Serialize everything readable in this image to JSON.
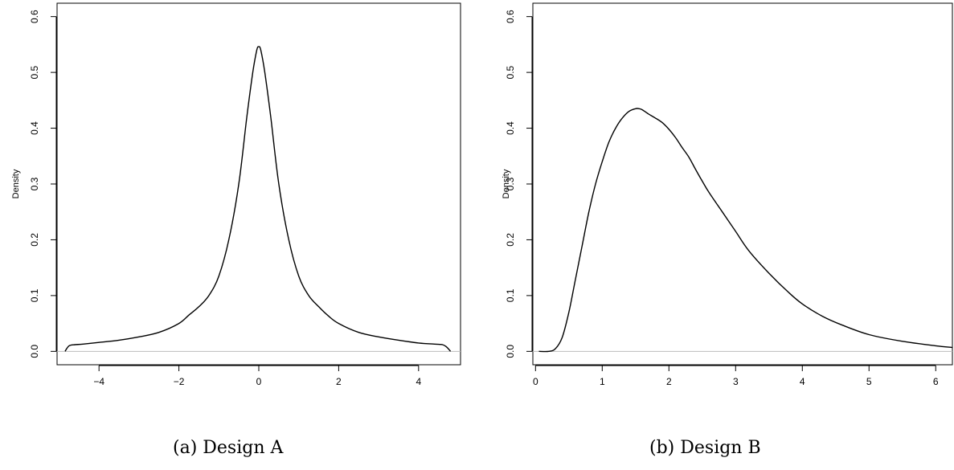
{
  "chart_data": [
    {
      "type": "line",
      "caption": "(a) Design A",
      "xlabel": "",
      "ylabel": "Density",
      "xlim": [
        -5.05,
        5.05
      ],
      "ylim": [
        -0.024,
        0.624
      ],
      "xticks": [
        -4,
        -2,
        0,
        2,
        4
      ],
      "xtick_labels": [
        "−4",
        "−2",
        "0",
        "2",
        "4"
      ],
      "yticks": [
        0.0,
        0.1,
        0.2,
        0.3,
        0.4,
        0.5,
        0.6
      ],
      "ytick_labels": [
        "0.0",
        "0.1",
        "0.2",
        "0.3",
        "0.4",
        "0.5",
        "0.6"
      ],
      "baseline_y": 0,
      "grid": false,
      "series": [
        {
          "x": [
            -4.85,
            -4.75,
            -4.6,
            -4.4,
            -4.0,
            -3.5,
            -3.0,
            -2.5,
            -2.0,
            -1.75,
            -1.5,
            -1.25,
            -1.0,
            -0.75,
            -0.5,
            -0.3,
            -0.15,
            -0.05,
            0.0,
            0.05,
            0.15,
            0.3,
            0.5,
            0.75,
            1.0,
            1.25,
            1.5,
            1.75,
            2.0,
            2.5,
            3.0,
            3.5,
            4.0,
            4.4,
            4.6,
            4.7,
            4.8
          ],
          "y": [
            0.0,
            0.01,
            0.012,
            0.013,
            0.016,
            0.02,
            0.026,
            0.034,
            0.05,
            0.065,
            0.08,
            0.1,
            0.135,
            0.2,
            0.3,
            0.42,
            0.5,
            0.54,
            0.546,
            0.54,
            0.5,
            0.42,
            0.3,
            0.2,
            0.135,
            0.1,
            0.08,
            0.063,
            0.05,
            0.034,
            0.026,
            0.02,
            0.015,
            0.013,
            0.012,
            0.008,
            0.0
          ]
        }
      ]
    },
    {
      "type": "line",
      "caption": "(b) Design B",
      "xlabel": "",
      "ylabel": "Density",
      "xlim": [
        -0.04,
        6.25
      ],
      "ylim": [
        -0.024,
        0.624
      ],
      "xticks": [
        0,
        1,
        2,
        3,
        4,
        5,
        6
      ],
      "xtick_labels": [
        "0",
        "1",
        "2",
        "3",
        "4",
        "5",
        "6"
      ],
      "yticks": [
        0.0,
        0.1,
        0.2,
        0.3,
        0.4,
        0.5,
        0.6
      ],
      "ytick_labels": [
        "0.0",
        "0.1",
        "0.2",
        "0.3",
        "0.4",
        "0.5",
        "0.6"
      ],
      "baseline_y": 0,
      "grid": false,
      "series": [
        {
          "x": [
            0.05,
            0.2,
            0.3,
            0.4,
            0.5,
            0.6,
            0.7,
            0.8,
            0.9,
            1.0,
            1.1,
            1.2,
            1.3,
            1.4,
            1.5,
            1.55,
            1.6,
            1.7,
            1.8,
            1.9,
            2.0,
            2.1,
            2.2,
            2.3,
            2.4,
            2.5,
            2.6,
            2.8,
            3.0,
            3.2,
            3.5,
            3.8,
            4.0,
            4.3,
            4.6,
            5.0,
            5.5,
            6.0,
            6.25
          ],
          "y": [
            0.0,
            0.0,
            0.005,
            0.025,
            0.07,
            0.13,
            0.19,
            0.25,
            0.3,
            0.34,
            0.375,
            0.4,
            0.418,
            0.43,
            0.435,
            0.435,
            0.433,
            0.425,
            0.418,
            0.41,
            0.398,
            0.383,
            0.365,
            0.348,
            0.326,
            0.305,
            0.285,
            0.25,
            0.215,
            0.18,
            0.14,
            0.105,
            0.085,
            0.063,
            0.047,
            0.03,
            0.018,
            0.01,
            0.007
          ]
        }
      ]
    }
  ]
}
